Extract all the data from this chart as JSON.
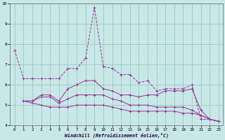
{
  "xlabel": "Windchill (Refroidissement éolien,°C)",
  "xlim": [
    -0.5,
    23.5
  ],
  "ylim": [
    4,
    10
  ],
  "yticks": [
    4,
    5,
    6,
    7,
    8,
    9,
    10
  ],
  "xticks": [
    0,
    1,
    2,
    3,
    4,
    5,
    6,
    7,
    8,
    9,
    10,
    11,
    12,
    13,
    14,
    15,
    16,
    17,
    18,
    19,
    20,
    21,
    22,
    23
  ],
  "bg_color": "#c8e8e8",
  "line_color": "#993399",
  "grid_color": "#99ccbb",
  "lines": [
    {
      "x": [
        0,
        1,
        2,
        3,
        4,
        5,
        6,
        7,
        8,
        9,
        10,
        11,
        12,
        13,
        14,
        15,
        16,
        17,
        18,
        19,
        20,
        21,
        22,
        23
      ],
      "y": [
        7.7,
        6.3,
        6.3,
        6.3,
        6.3,
        6.3,
        6.8,
        6.8,
        7.3,
        9.8,
        6.9,
        6.8,
        6.5,
        6.5,
        6.1,
        6.2,
        5.7,
        5.8,
        5.8,
        5.8,
        6.0,
        4.3,
        4.3,
        4.2
      ],
      "dashed": true
    },
    {
      "x": [
        1,
        2,
        3,
        4,
        5,
        6,
        7,
        8,
        9,
        10,
        11,
        12,
        13,
        14,
        15,
        16,
        17,
        18,
        19,
        20,
        21,
        22,
        23
      ],
      "y": [
        5.2,
        5.2,
        5.5,
        5.5,
        5.2,
        5.8,
        6.0,
        6.2,
        6.2,
        5.8,
        5.7,
        5.5,
        5.5,
        5.4,
        5.5,
        5.5,
        5.7,
        5.7,
        5.7,
        5.8,
        4.75,
        4.3,
        4.2
      ],
      "dashed": false
    },
    {
      "x": [
        1,
        2,
        3,
        4,
        5,
        6,
        7,
        8,
        9,
        10,
        11,
        12,
        13,
        14,
        15,
        16,
        17,
        18,
        19,
        20,
        21,
        22,
        23
      ],
      "y": [
        5.2,
        5.2,
        5.4,
        5.4,
        5.1,
        5.3,
        5.5,
        5.5,
        5.5,
        5.5,
        5.3,
        5.2,
        5.0,
        5.0,
        5.0,
        4.9,
        4.9,
        4.9,
        4.9,
        4.75,
        4.5,
        4.3,
        4.2
      ],
      "dashed": false
    },
    {
      "x": [
        1,
        2,
        3,
        4,
        5,
        6,
        7,
        8,
        9,
        10,
        11,
        12,
        13,
        14,
        15,
        16,
        17,
        18,
        19,
        20,
        21,
        22,
        23
      ],
      "y": [
        5.2,
        5.1,
        5.0,
        4.9,
        4.9,
        4.9,
        5.0,
        5.0,
        5.0,
        5.0,
        4.9,
        4.8,
        4.7,
        4.7,
        4.7,
        4.7,
        4.7,
        4.7,
        4.6,
        4.6,
        4.5,
        4.3,
        4.2
      ],
      "dashed": false
    }
  ]
}
